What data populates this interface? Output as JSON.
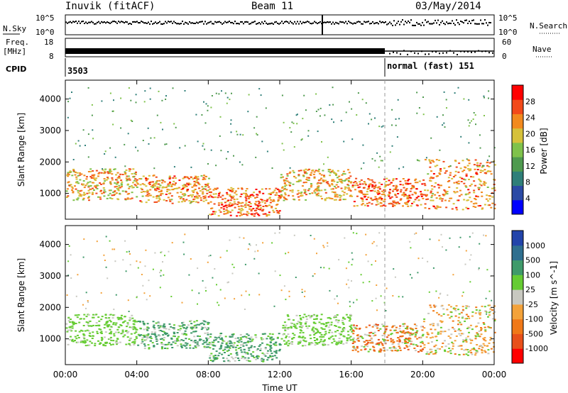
{
  "header": {
    "station": "Inuvik (fitACF)",
    "beam": "Beam 11",
    "date": "03/May/2014"
  },
  "strips": {
    "nsky_label": "N.Sky",
    "nsearch_label": "N.Search",
    "noise_ticks_left": [
      "10^5",
      "10^0"
    ],
    "noise_ticks_right": [
      "10^5",
      "10^0"
    ],
    "freq_label": "Freq.",
    "freq_unit": "[MHz]",
    "freq_ticks": [
      "18",
      "8"
    ],
    "nave_label": "Nave",
    "nave_ticks": [
      "60",
      "0"
    ],
    "cpid_label": "CPID",
    "cpid_first": "3503",
    "cpid_second": "normal (fast) 151"
  },
  "chart_data": [
    {
      "type": "heatmap",
      "title": "",
      "xlabel": "",
      "ylabel": "Slant Range [km]",
      "x_ticks": [
        "00:00",
        "04:00",
        "08:00",
        "12:00",
        "16:00",
        "20:00",
        "00:00"
      ],
      "y_ticks": [
        1000,
        2000,
        3000,
        4000
      ],
      "xlim": [
        0,
        24
      ],
      "ylim": [
        180,
        4600
      ],
      "colorbar": {
        "label": "Power [dB]",
        "ticks": [
          4,
          8,
          12,
          16,
          20,
          24,
          28
        ],
        "range": [
          0,
          32
        ],
        "colors": [
          "#0000ff",
          "#2b4aa5",
          "#2f7f79",
          "#4f9a4f",
          "#7fc24b",
          "#d6c13a",
          "#f28a1e",
          "#f24a1a",
          "#ff0000"
        ]
      },
      "echo_bands": [
        {
          "t0": 0.0,
          "t1": 4.0,
          "r0": 800,
          "r1": 1800,
          "level": 22
        },
        {
          "t0": 4.0,
          "t1": 8.0,
          "r0": 700,
          "r1": 1600,
          "level": 24
        },
        {
          "t0": 8.0,
          "t1": 12.0,
          "r0": 300,
          "r1": 1200,
          "level": 26
        },
        {
          "t0": 12.0,
          "t1": 16.0,
          "r0": 800,
          "r1": 1800,
          "level": 22
        },
        {
          "t0": 16.0,
          "t1": 20.0,
          "r0": 600,
          "r1": 1500,
          "level": 26
        },
        {
          "t0": 20.0,
          "t1": 24.0,
          "r0": 500,
          "r1": 2100,
          "level": 24
        }
      ]
    },
    {
      "type": "heatmap",
      "title": "",
      "xlabel": "Time UT",
      "ylabel": "Slant Range [km]",
      "x_ticks": [
        "00:00",
        "04:00",
        "08:00",
        "12:00",
        "16:00",
        "20:00",
        "00:00"
      ],
      "y_ticks": [
        1000,
        2000,
        3000,
        4000
      ],
      "xlim": [
        0,
        24
      ],
      "ylim": [
        180,
        4600
      ],
      "colorbar": {
        "label": "Velocity [m s^-1]",
        "ticks": [
          1000,
          500,
          100,
          25,
          -25,
          -100,
          -500,
          -1000
        ],
        "colors": [
          "#2244aa",
          "#2f6f8f",
          "#3f9a6a",
          "#66cc33",
          "#c8c8c0",
          "#f3a23a",
          "#f07818",
          "#e8501a",
          "#ff0000"
        ]
      },
      "echo_bands": [
        {
          "t0": 0.0,
          "t1": 4.0,
          "r0": 800,
          "r1": 1800,
          "level": 25
        },
        {
          "t0": 4.0,
          "t1": 8.0,
          "r0": 700,
          "r1": 1600,
          "level": 100
        },
        {
          "t0": 8.0,
          "t1": 12.0,
          "r0": 300,
          "r1": 1200,
          "level": 100
        },
        {
          "t0": 12.0,
          "t1": 16.0,
          "r0": 800,
          "r1": 1800,
          "level": 25
        },
        {
          "t0": 16.0,
          "t1": 20.0,
          "r0": 600,
          "r1": 1500,
          "level": -500
        },
        {
          "t0": 20.0,
          "t1": 24.0,
          "r0": 500,
          "r1": 2100,
          "level": -100
        }
      ]
    }
  ],
  "mode_change_time": 18.0
}
